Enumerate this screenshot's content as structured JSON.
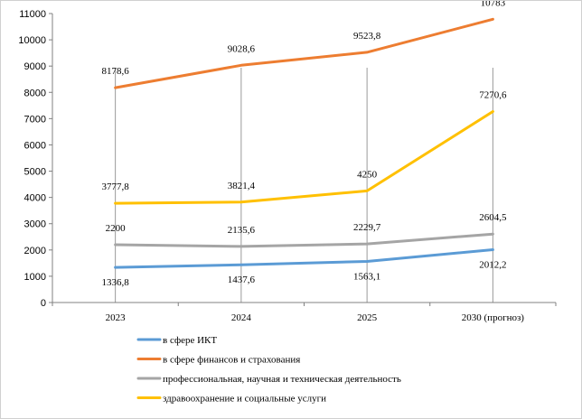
{
  "chart_data": {
    "type": "line",
    "title": "",
    "xlabel": "",
    "ylabel": "",
    "categories": [
      "2023",
      "2024",
      "2025",
      "2030  (прогноз)"
    ],
    "ylim": [
      0,
      11000
    ],
    "yticks": [
      0,
      1000,
      2000,
      3000,
      4000,
      5000,
      6000,
      7000,
      8000,
      9000,
      10000,
      11000
    ],
    "grid": "vertical lines at categories",
    "legend_position": "bottom",
    "series": [
      {
        "name": "в сфере ИКТ",
        "color": "#5b9bd5",
        "values": [
          1336.8,
          1437.6,
          1563.1,
          2012.2
        ],
        "labels": [
          "1336,8",
          "1437,6",
          "1563,1",
          "2012,2"
        ],
        "label_position": "below"
      },
      {
        "name": "в сфере финансов и страхования",
        "color": "#ed7d31",
        "values": [
          8178.6,
          9028.6,
          9523.8,
          10783
        ],
        "labels": [
          "8178,6",
          "9028,6",
          "9523,8",
          "10783"
        ],
        "label_position": "above"
      },
      {
        "name": "профессиональная, научная и техническая  деятельность",
        "color": "#a5a5a5",
        "values": [
          2200,
          2135.6,
          2229.7,
          2604.5
        ],
        "labels": [
          "2200",
          "2135,6",
          "2229,7",
          "2604,5"
        ],
        "label_position": "above"
      },
      {
        "name": "здравоохранение  и социальные услуги",
        "color": "#ffc000",
        "values": [
          3777.8,
          3821.4,
          4250,
          7270.6
        ],
        "labels": [
          "3777,8",
          "3821,4",
          "4250",
          "7270,6"
        ],
        "label_position": "above"
      }
    ]
  }
}
